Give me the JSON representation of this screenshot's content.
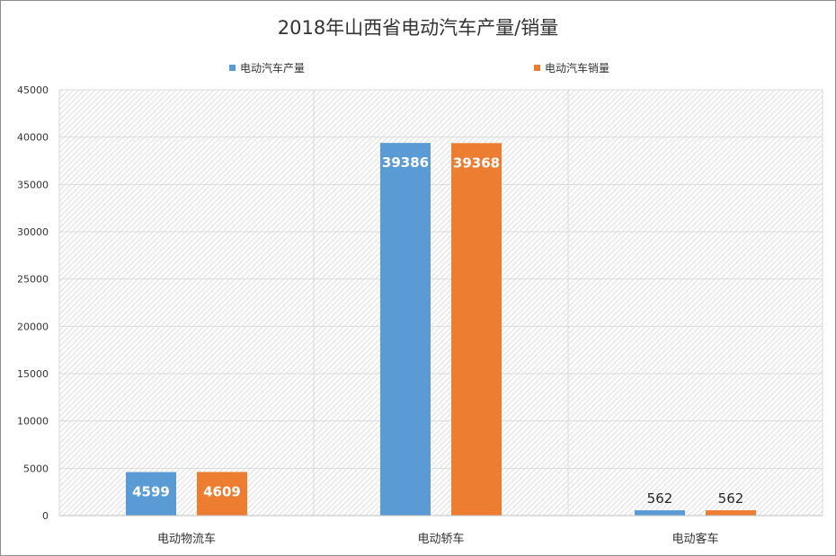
{
  "chart_data": {
    "type": "bar",
    "title": "2018年山西省电动汽车产量/销量",
    "xlabel": "",
    "ylabel": "",
    "categories": [
      "电动物流车",
      "电动轿车",
      "电动客车"
    ],
    "series": [
      {
        "name": "电动汽车产量",
        "color": "#5b9bd5",
        "values": [
          4599,
          39386,
          562
        ]
      },
      {
        "name": "电动汽车销量",
        "color": "#ed7d31",
        "values": [
          4609,
          39368,
          562
        ]
      }
    ],
    "ylim": [
      0,
      45000
    ],
    "yticks": [
      0,
      5000,
      10000,
      15000,
      20000,
      25000,
      30000,
      35000,
      40000,
      45000
    ],
    "legend_position": "top",
    "grid": true,
    "data_labels": true
  }
}
